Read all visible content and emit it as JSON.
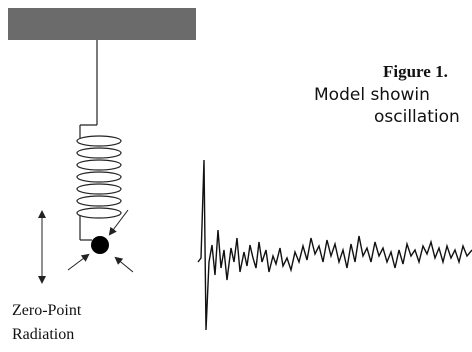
{
  "figure": {
    "title": "Figure 1.",
    "caption_lines": [
      "Model showin",
      "oscillation"
    ]
  },
  "labels": {
    "radiation": [
      "Zero-Point",
      "Radiation"
    ]
  }
}
